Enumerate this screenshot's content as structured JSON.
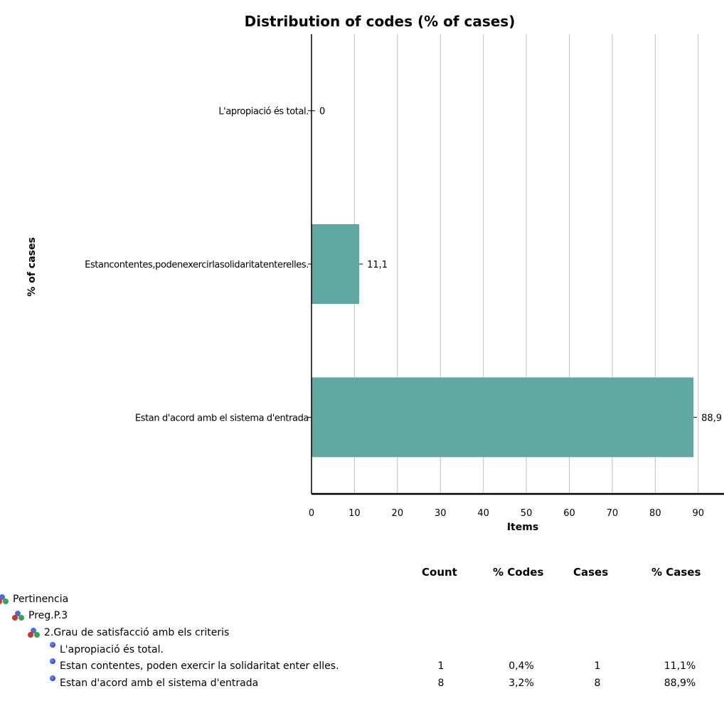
{
  "chart_data": {
    "type": "bar",
    "orientation": "horizontal",
    "title": "Distribution of codes (% of cases)",
    "xlabel": "Items",
    "ylabel": "% of cases",
    "categories": [
      "L'apropiació és total.",
      "Estancontentes,podenexercirlasolidaritatenterelles.",
      "Estan d'acord amb el sistema d'entrada"
    ],
    "values": [
      0,
      11.1,
      88.9
    ],
    "value_labels": [
      "0",
      "11,1",
      "88,9"
    ],
    "xlim": [
      0,
      96
    ],
    "xticks": [
      0,
      10,
      20,
      30,
      40,
      50,
      60,
      70,
      80,
      90
    ],
    "grid": true,
    "bar_color": "#5fa8a2"
  },
  "table": {
    "headers": {
      "count": "Count",
      "pct_codes": "% Codes",
      "cases": "Cases",
      "pct_cases": "% Cases"
    },
    "rows": [
      {
        "label": "Pertinencia",
        "kind": "group",
        "count": "",
        "pct_codes": "",
        "cases": "",
        "pct_cases": ""
      },
      {
        "label": "Preg.P.3",
        "kind": "group",
        "count": "",
        "pct_codes": "",
        "cases": "",
        "pct_cases": ""
      },
      {
        "label": "2.Grau de satisfacció amb els criteris",
        "kind": "group",
        "count": "",
        "pct_codes": "",
        "cases": "",
        "pct_cases": ""
      },
      {
        "label": "L'apropiació és total.",
        "kind": "code",
        "count": "",
        "pct_codes": "",
        "cases": "",
        "pct_cases": ""
      },
      {
        "label": "Estan contentes, poden exercir la solidaritat enter elles.",
        "kind": "code",
        "count": "1",
        "pct_codes": "0,4%",
        "cases": "1",
        "pct_cases": "11,1%"
      },
      {
        "label": "Estan d'acord amb el sistema d'entrada",
        "kind": "code",
        "count": "8",
        "pct_codes": "3,2%",
        "cases": "8",
        "pct_cases": "88,9%"
      }
    ]
  }
}
